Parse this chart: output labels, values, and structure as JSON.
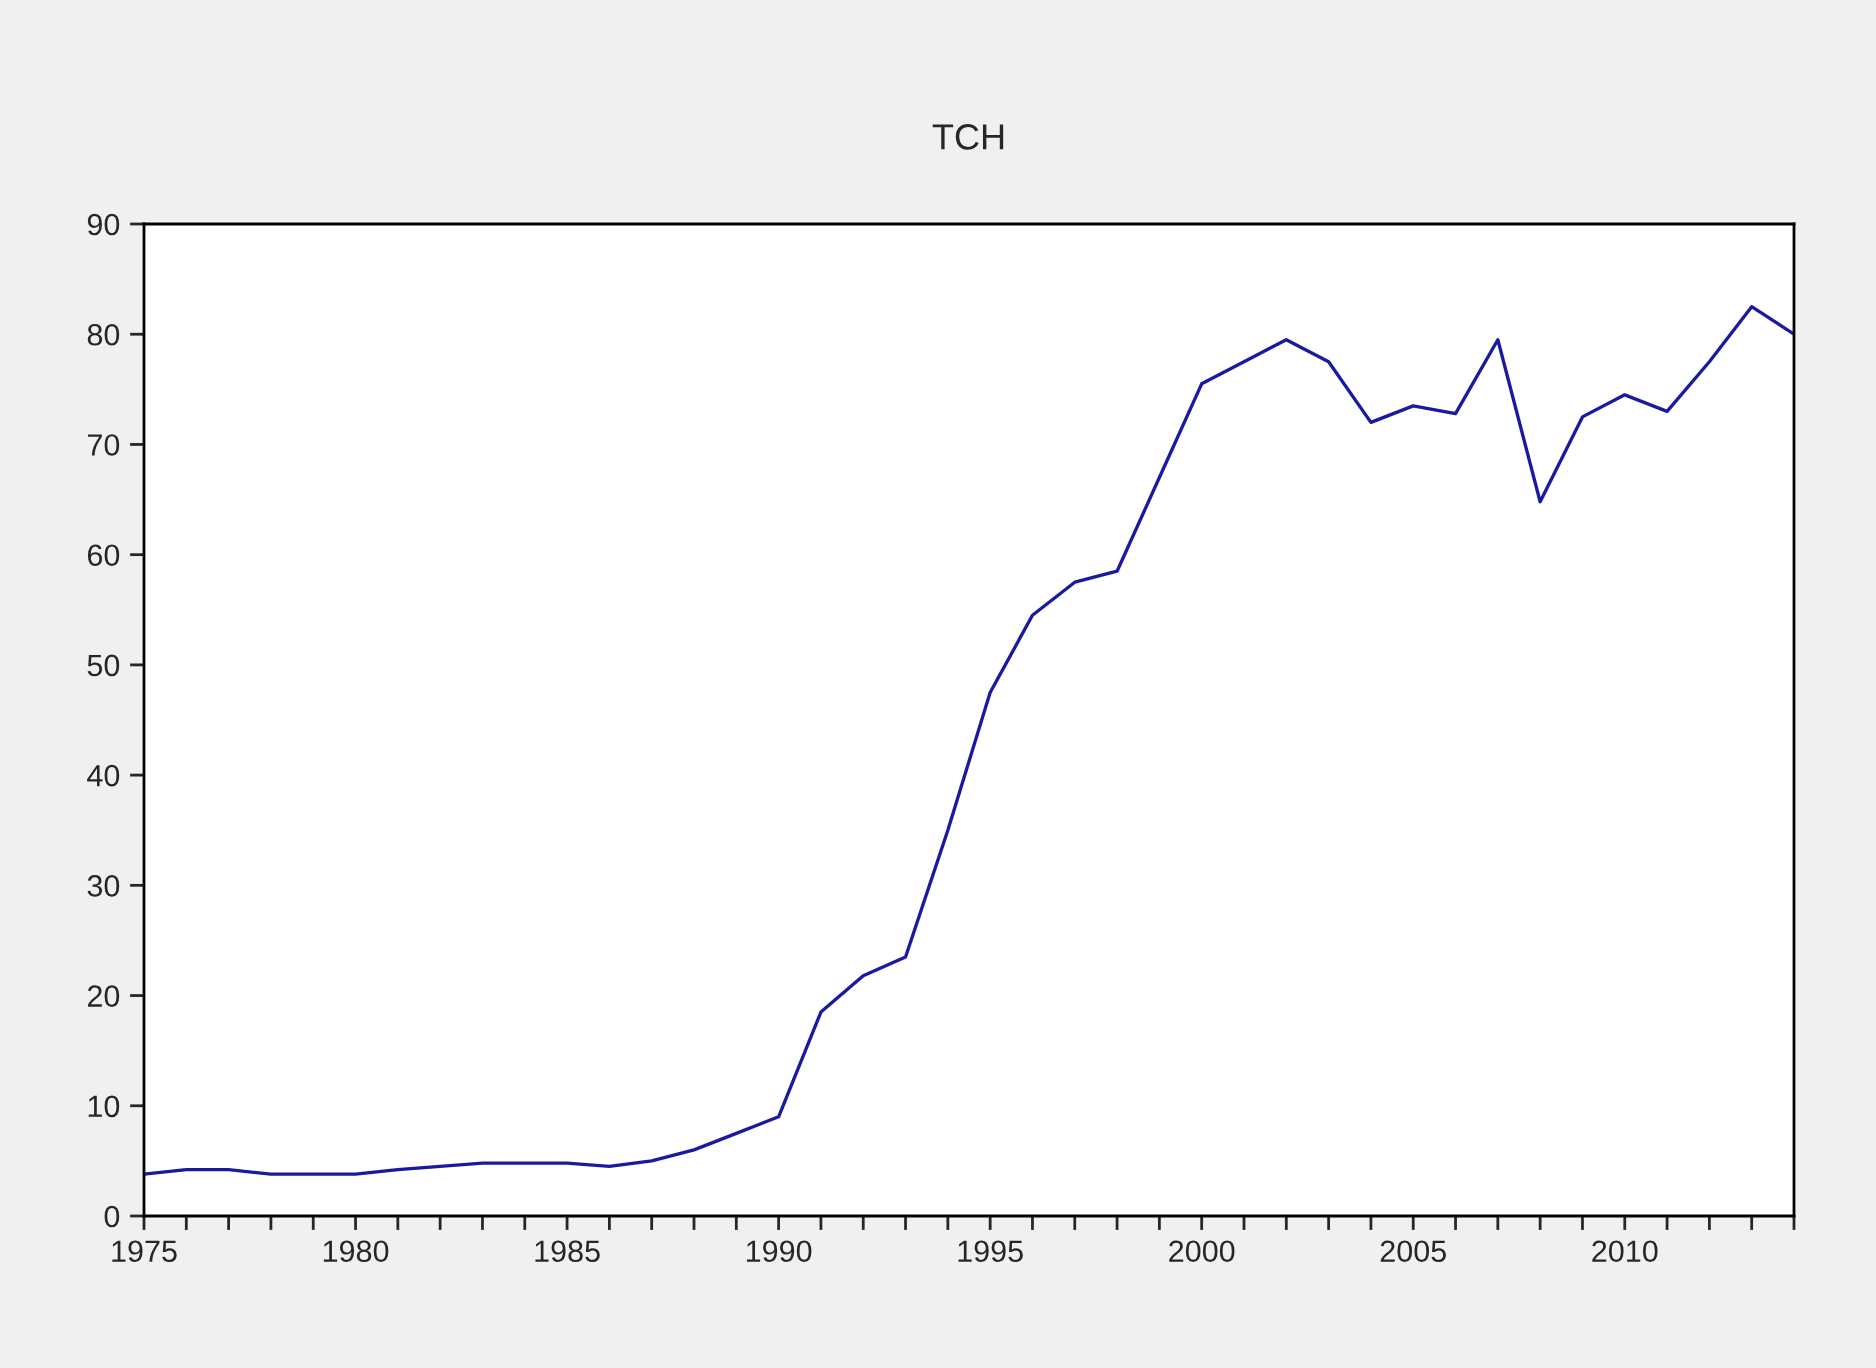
{
  "chart_data": {
    "type": "line",
    "title": "TCH",
    "x": [
      1975,
      1976,
      1977,
      1978,
      1979,
      1980,
      1981,
      1982,
      1983,
      1984,
      1985,
      1986,
      1987,
      1988,
      1989,
      1990,
      1991,
      1992,
      1993,
      1994,
      1995,
      1996,
      1997,
      1998,
      1999,
      2000,
      2001,
      2002,
      2003,
      2004,
      2005,
      2006,
      2007,
      2008,
      2009,
      2010,
      2011,
      2012,
      2013,
      2014
    ],
    "series": [
      {
        "color": "#1a1aa0",
        "values": [
          3.8,
          4.2,
          4.2,
          3.8,
          3.8,
          3.8,
          4.2,
          4.5,
          4.8,
          4.8,
          4.8,
          4.5,
          5.0,
          6.0,
          7.5,
          9.0,
          18.5,
          21.8,
          23.5,
          35,
          47.5,
          54.5,
          57.5,
          58.5,
          67,
          75.5,
          77.5,
          79.5,
          77.5,
          72,
          73.5,
          72.8,
          79.5,
          64.8,
          72.5,
          74.5,
          73,
          77.5,
          82.5,
          80
        ]
      }
    ],
    "xlim": [
      1975,
      2014
    ],
    "xticks": [
      1975,
      {
        "value": 1976,
        "label": null
      },
      {
        "value": 1977,
        "label": null
      },
      {
        "value": 1978,
        "label": null
      },
      {
        "value": 1979,
        "label": null
      },
      1980,
      {
        "value": 1981,
        "label": null
      },
      {
        "value": 1982,
        "label": null
      },
      {
        "value": 1983,
        "label": null
      },
      {
        "value": 1984,
        "label": null
      },
      1985,
      {
        "value": 1986,
        "label": null
      },
      {
        "value": 1987,
        "label": null
      },
      {
        "value": 1988,
        "label": null
      },
      {
        "value": 1989,
        "label": null
      },
      1990,
      {
        "value": 1991,
        "label": null
      },
      {
        "value": 1992,
        "label": null
      },
      {
        "value": 1993,
        "label": null
      },
      {
        "value": 1994,
        "label": null
      },
      1995,
      {
        "value": 1996,
        "label": null
      },
      {
        "value": 1997,
        "label": null
      },
      {
        "value": 1998,
        "label": null
      },
      {
        "value": 1999,
        "label": null
      },
      2000,
      {
        "value": 2001,
        "label": null
      },
      {
        "value": 2002,
        "label": null
      },
      {
        "value": 2003,
        "label": null
      },
      {
        "value": 2004,
        "label": null
      },
      2005,
      {
        "value": 2006,
        "label": null
      },
      {
        "value": 2007,
        "label": null
      },
      {
        "value": 2008,
        "label": null
      },
      {
        "value": 2009,
        "label": null
      },
      2010,
      {
        "value": 2011,
        "label": null
      },
      {
        "value": 2012,
        "label": null
      },
      {
        "value": 2013,
        "label": null
      },
      {
        "value": 2014,
        "label": null
      }
    ],
    "ylim": [
      0,
      90
    ],
    "yticks": [
      0,
      10,
      20,
      30,
      40,
      50,
      60,
      70,
      80,
      90
    ],
    "grid": false,
    "legend": false
  }
}
